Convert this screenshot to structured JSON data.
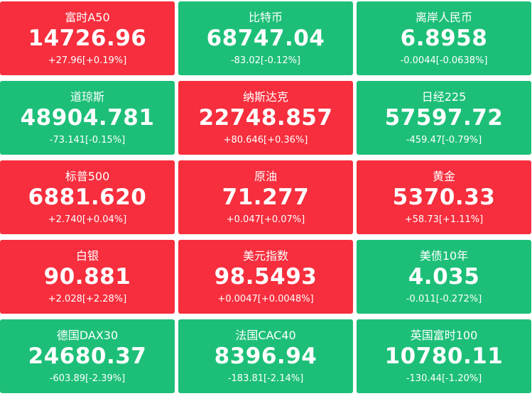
{
  "tiles": [
    {
      "name": "富时A50",
      "price": "14726.96",
      "change": "+27.96[+0.19%]",
      "color": "#f62e3d"
    },
    {
      "name": "比特币",
      "price": "68747.04",
      "change": "-83.02[-0.12%]",
      "color": "#1dbf78"
    },
    {
      "name": "离岸人民币",
      "price": "6.8958",
      "change": "-0.0044[-0.0638%]",
      "color": "#1dbf78"
    },
    {
      "name": "道琼斯",
      "price": "48904.781",
      "change": "-73.141[-0.15%]",
      "color": "#1dbf78"
    },
    {
      "name": "纳斯达克",
      "price": "22748.857",
      "change": "+80.646[+0.36%]",
      "color": "#f62e3d"
    },
    {
      "name": "日经225",
      "price": "57597.72",
      "change": "-459.47[-0.79%]",
      "color": "#1dbf78"
    },
    {
      "name": "标普500",
      "price": "6881.620",
      "change": "+2.740[+0.04%]",
      "color": "#f62e3d"
    },
    {
      "name": "原油",
      "price": "71.277",
      "change": "+0.047[+0.07%]",
      "color": "#f62e3d"
    },
    {
      "name": "黄金",
      "price": "5370.33",
      "change": "+58.73[+1.11%]",
      "color": "#f62e3d"
    },
    {
      "name": "白银",
      "price": "90.881",
      "change": "+2.028[+2.28%]",
      "color": "#f62e3d"
    },
    {
      "name": "美元指数",
      "price": "98.5493",
      "change": "+0.0047[+0.0048%]",
      "color": "#f62e3d"
    },
    {
      "name": "美债10年",
      "price": "4.035",
      "change": "-0.011[-0.272%]",
      "color": "#1dbf78"
    },
    {
      "name": "德国DAX30",
      "price": "24680.37",
      "change": "-603.89[-2.39%]",
      "color": "#1dbf78"
    },
    {
      "name": "法国CAC40",
      "price": "8396.94",
      "change": "-183.81[-2.14%]",
      "color": "#1dbf78"
    },
    {
      "name": "英国富时100",
      "price": "10780.11",
      "change": "-130.44[-1.20%]",
      "color": "#1dbf78"
    }
  ]
}
